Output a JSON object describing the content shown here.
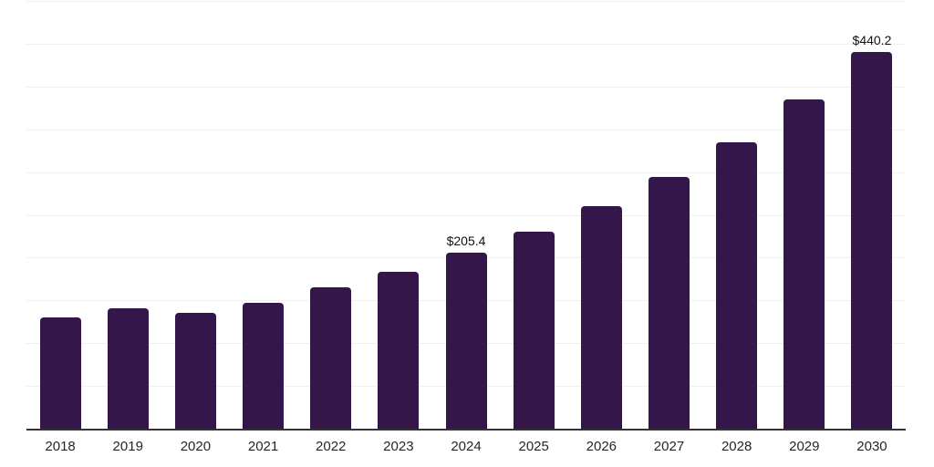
{
  "chart_data": {
    "type": "bar",
    "title": "",
    "xlabel": "",
    "ylabel": "",
    "categories": [
      "2018",
      "2019",
      "2020",
      "2021",
      "2022",
      "2023",
      "2024",
      "2025",
      "2026",
      "2027",
      "2028",
      "2029",
      "2030"
    ],
    "values": [
      129.9,
      141.0,
      135.0,
      147.5,
      165.2,
      183.0,
      205.4,
      230.4,
      260.1,
      294.0,
      334.8,
      384.4,
      440.2
    ],
    "data_labels": [
      "",
      "",
      "",
      "",
      "",
      "",
      "$205.4",
      "",
      "",
      "",
      "",
      "",
      "$440.2"
    ],
    "ylim": [
      0,
      500
    ],
    "gridline_step": 50,
    "grid": "horizontal-only",
    "y_tick_labels": "none",
    "legend": "none"
  },
  "colors": {
    "bar": "#35164a",
    "gridline": "#f0f0f0",
    "axis_line": "#333333",
    "tick_label": "#262626",
    "data_label": "#111111",
    "background": "#ffffff"
  }
}
